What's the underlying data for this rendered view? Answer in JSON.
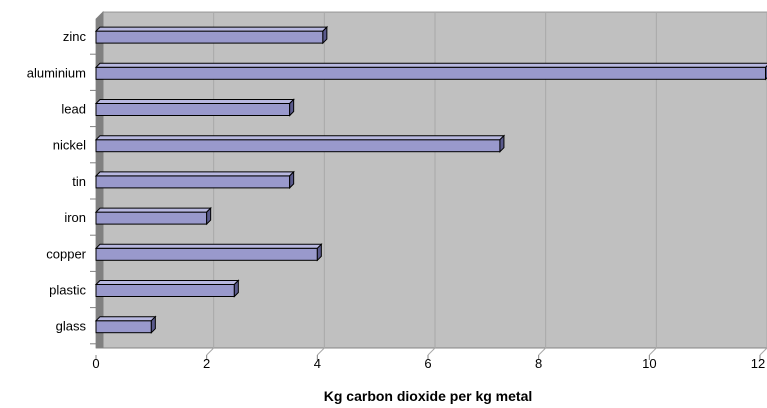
{
  "chart_data": {
    "type": "bar",
    "orientation": "horizontal",
    "categories": [
      "zinc",
      "aluminium",
      "lead",
      "nickel",
      "tin",
      "iron",
      "copper",
      "plastic",
      "glass"
    ],
    "values": [
      4.1,
      12.1,
      3.5,
      7.3,
      3.5,
      2.0,
      4.0,
      2.5,
      1.0
    ],
    "xlabel": "Kg carbon dioxide per kg metal",
    "ylabel": "",
    "xlim": [
      0,
      12
    ],
    "xticks": [
      "0",
      "2",
      "4",
      "6",
      "8",
      "10",
      "12"
    ],
    "grid": true,
    "legend": "none",
    "colors": {
      "bar_front": "#9999cc",
      "bar_top": "#b8b8e0",
      "bar_side": "#5a5a8c",
      "plot_back": "#c0c0c0",
      "plot_floor": "#dcdcdc",
      "plot_wall": "#808080",
      "gridline": "#ffffff",
      "outline": "#000000"
    }
  }
}
